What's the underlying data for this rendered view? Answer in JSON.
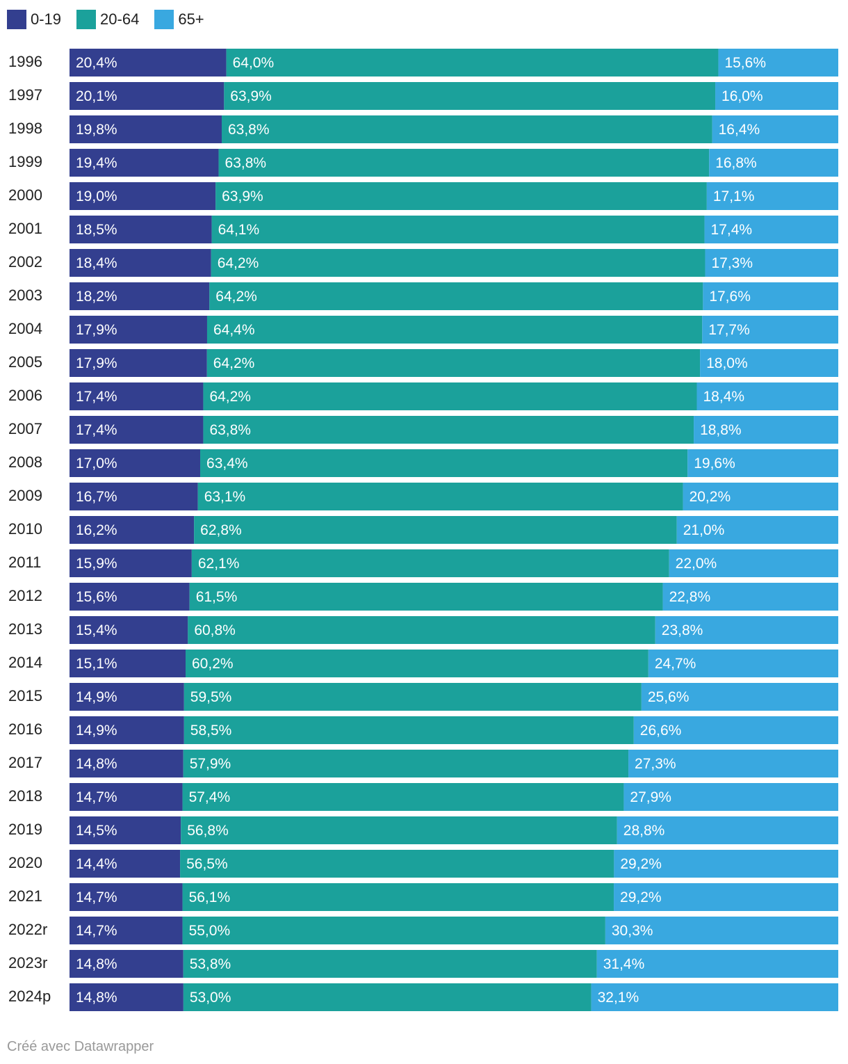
{
  "chart_data": {
    "type": "bar",
    "stacked": true,
    "orientation": "horizontal",
    "categories": [
      "1996",
      "1997",
      "1998",
      "1999",
      "2000",
      "2001",
      "2002",
      "2003",
      "2004",
      "2005",
      "2006",
      "2007",
      "2008",
      "2009",
      "2010",
      "2011",
      "2012",
      "2013",
      "2014",
      "2015",
      "2016",
      "2017",
      "2018",
      "2019",
      "2020",
      "2021",
      "2022r",
      "2023r",
      "2024p"
    ],
    "series": [
      {
        "name": "0-19",
        "color": "#333f8f",
        "values": [
          20.4,
          20.1,
          19.8,
          19.4,
          19.0,
          18.5,
          18.4,
          18.2,
          17.9,
          17.9,
          17.4,
          17.4,
          17.0,
          16.7,
          16.2,
          15.9,
          15.6,
          15.4,
          15.1,
          14.9,
          14.9,
          14.8,
          14.7,
          14.5,
          14.4,
          14.7,
          14.7,
          14.8,
          14.8
        ],
        "labels": [
          "20,4%",
          "20,1%",
          "19,8%",
          "19,4%",
          "19,0%",
          "18,5%",
          "18,4%",
          "18,2%",
          "17,9%",
          "17,9%",
          "17,4%",
          "17,4%",
          "17,0%",
          "16,7%",
          "16,2%",
          "15,9%",
          "15,6%",
          "15,4%",
          "15,1%",
          "14,9%",
          "14,9%",
          "14,8%",
          "14,7%",
          "14,5%",
          "14,4%",
          "14,7%",
          "14,7%",
          "14,8%",
          "14,8%"
        ]
      },
      {
        "name": "20-64",
        "color": "#1ba19b",
        "values": [
          64.0,
          63.9,
          63.8,
          63.8,
          63.9,
          64.1,
          64.2,
          64.2,
          64.4,
          64.2,
          64.2,
          63.8,
          63.4,
          63.1,
          62.8,
          62.1,
          61.5,
          60.8,
          60.2,
          59.5,
          58.5,
          57.9,
          57.4,
          56.8,
          56.5,
          56.1,
          55.0,
          53.8,
          53.0
        ],
        "labels": [
          "64,0%",
          "63,9%",
          "63,8%",
          "63,8%",
          "63,9%",
          "64,1%",
          "64,2%",
          "64,2%",
          "64,4%",
          "64,2%",
          "64,2%",
          "63,8%",
          "63,4%",
          "63,1%",
          "62,8%",
          "62,1%",
          "61,5%",
          "60,8%",
          "60,2%",
          "59,5%",
          "58,5%",
          "57,9%",
          "57,4%",
          "56,8%",
          "56,5%",
          "56,1%",
          "55,0%",
          "53,8%",
          "53,0%"
        ]
      },
      {
        "name": "65+",
        "color": "#39a8e0",
        "values": [
          15.6,
          16.0,
          16.4,
          16.8,
          17.1,
          17.4,
          17.3,
          17.6,
          17.7,
          18.0,
          18.4,
          18.8,
          19.6,
          20.2,
          21.0,
          22.0,
          22.8,
          23.8,
          24.7,
          25.6,
          26.6,
          27.3,
          27.9,
          28.8,
          29.2,
          29.2,
          30.3,
          31.4,
          32.1
        ],
        "labels": [
          "15,6%",
          "16,0%",
          "16,4%",
          "16,8%",
          "17,1%",
          "17,4%",
          "17,3%",
          "17,6%",
          "17,7%",
          "18,0%",
          "18,4%",
          "18,8%",
          "19,6%",
          "20,2%",
          "21,0%",
          "22,0%",
          "22,8%",
          "23,8%",
          "24,7%",
          "25,6%",
          "26,6%",
          "27,3%",
          "27,9%",
          "28,8%",
          "29,2%",
          "29,2%",
          "30,3%",
          "31,4%",
          "32,1%"
        ]
      }
    ],
    "title": "",
    "xlabel": "",
    "ylabel": "",
    "xlim": [
      0,
      100
    ],
    "grid": false,
    "legend_position": "top-left"
  },
  "legend": {
    "items": [
      {
        "label": "0-19",
        "color": "#333f8f"
      },
      {
        "label": "20-64",
        "color": "#1ba19b"
      },
      {
        "label": "65+",
        "color": "#39a8e0"
      }
    ]
  },
  "footer": {
    "credit": "Créé avec Datawrapper"
  }
}
